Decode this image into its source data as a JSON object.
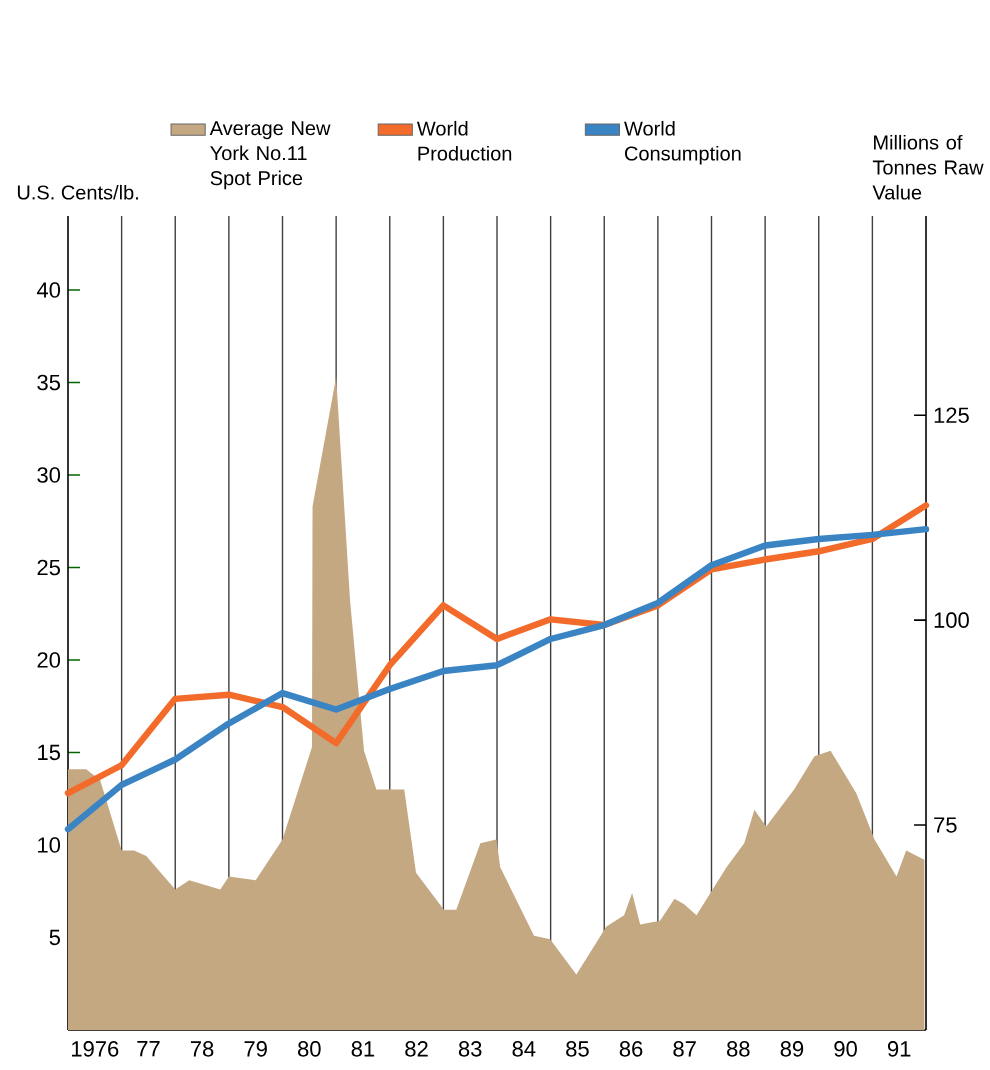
{
  "chart_data": {
    "type": "line",
    "ylabel": "U.S. Cents/lb.",
    "y2label": "Millions of Tonnes Raw Value",
    "xlim": [
      1975.5,
      1991.5
    ],
    "xticks": [
      1976,
      {
        "value": 1977,
        "label": "77"
      },
      {
        "value": 1978,
        "label": "78"
      },
      {
        "value": 1979,
        "label": "79"
      },
      {
        "value": 1980,
        "label": "80"
      },
      {
        "value": 1981,
        "label": "81"
      },
      {
        "value": 1982,
        "label": "82"
      },
      {
        "value": 1983,
        "label": "83"
      },
      {
        "value": 1984,
        "label": "84"
      },
      {
        "value": 1985,
        "label": "85"
      },
      {
        "value": 1986,
        "label": "86"
      },
      {
        "value": 1987,
        "label": "87"
      },
      {
        "value": 1988,
        "label": "88"
      },
      {
        "value": 1989,
        "label": "89"
      },
      {
        "value": 1990,
        "label": "90"
      },
      {
        "value": 1991,
        "label": "91"
      },
      {
        "value": 1976.5,
        "label": null
      },
      {
        "value": 1977.5,
        "label": null
      },
      {
        "value": 1978.5,
        "label": null
      },
      {
        "value": 1979.5,
        "label": null
      },
      {
        "value": 1980.5,
        "label": null
      },
      {
        "value": 1981.5,
        "label": null
      },
      {
        "value": 1982.5,
        "label": null
      },
      {
        "value": 1983.5,
        "label": null
      },
      {
        "value": 1984.5,
        "label": null
      },
      {
        "value": 1985.5,
        "label": null
      },
      {
        "value": 1986.5,
        "label": null
      },
      {
        "value": 1987.5,
        "label": null
      },
      {
        "value": 1988.5,
        "label": null
      },
      {
        "value": 1989.5,
        "label": null
      },
      {
        "value": 1990.5,
        "label": null
      }
    ],
    "ylim": [
      0,
      44
    ],
    "yticks": [
      5,
      10,
      15,
      20,
      25,
      30,
      35,
      40
    ],
    "y2lim": [
      50,
      149.3
    ],
    "y2ticks": [
      75,
      100,
      125
    ],
    "grid": "x",
    "legend": "top",
    "series": [
      {
        "name": "Average New York No.11 Spot Price",
        "type": "area",
        "color": "#c4a882",
        "x": [
          1975.5,
          1975.84,
          1976.1,
          1976.5,
          1976.73,
          1976.96,
          1977.5,
          1977.76,
          1978.34,
          1978.5,
          1979.0,
          1979.5,
          1980.05,
          1980.06,
          1980.5,
          1980.76,
          1981.02,
          1981.25,
          1981.77,
          1981.99,
          1982.51,
          1982.74,
          1983.19,
          1983.49,
          1983.56,
          1984.19,
          1984.49,
          1984.98,
          1985.54,
          1985.87,
          1986.02,
          1986.17,
          1986.54,
          1986.81,
          1986.99,
          1987.22,
          1987.78,
          1988.11,
          1988.3,
          1988.52,
          1989.04,
          1989.42,
          1989.72,
          1990.2,
          1990.54,
          1990.95,
          1991.13,
          1991.47
        ],
        "values": [
          14.1,
          14.1,
          13.5,
          9.7,
          9.7,
          9.4,
          7.6,
          8.1,
          7.6,
          8.3,
          8.1,
          10.3,
          15.3,
          28.3,
          35.3,
          23.2,
          15.1,
          13.0,
          13.0,
          8.5,
          6.5,
          6.5,
          10.1,
          10.3,
          8.8,
          5.1,
          4.9,
          3.0,
          5.6,
          6.2,
          7.4,
          5.7,
          5.9,
          7.1,
          6.8,
          6.2,
          8.8,
          10.1,
          11.9,
          11.0,
          13.0,
          14.8,
          15.1,
          12.8,
          10.3,
          8.3,
          9.7,
          9.2
        ]
      },
      {
        "name": "World Production",
        "axis": "y2",
        "color": "#f26b2a",
        "x": [
          1975.5,
          1976.5,
          1977.5,
          1978.5,
          1979.5,
          1980.5,
          1981.5,
          1982.5,
          1983.5,
          1984.5,
          1985.5,
          1986.5,
          1987.5,
          1988.5,
          1989.5,
          1990.5,
          1991.5
        ],
        "values": [
          78.9,
          82.3,
          90.4,
          90.9,
          89.4,
          85.0,
          94.5,
          101.8,
          97.7,
          100.1,
          99.4,
          101.8,
          106.2,
          107.4,
          108.4,
          109.9,
          114.0
        ]
      },
      {
        "name": "World Consumption",
        "axis": "y2",
        "color": "#3a84c4",
        "x": [
          1975.5,
          1976.5,
          1977.5,
          1978.5,
          1979.5,
          1980.5,
          1981.5,
          1982.5,
          1983.5,
          1984.5,
          1985.5,
          1986.5,
          1987.5,
          1988.5,
          1989.5,
          1990.5,
          1991.5
        ],
        "values": [
          74.5,
          79.9,
          83.0,
          87.4,
          91.1,
          89.1,
          91.6,
          93.8,
          94.5,
          97.7,
          99.4,
          102.1,
          106.7,
          109.1,
          109.9,
          110.4,
          111.1
        ]
      }
    ]
  }
}
